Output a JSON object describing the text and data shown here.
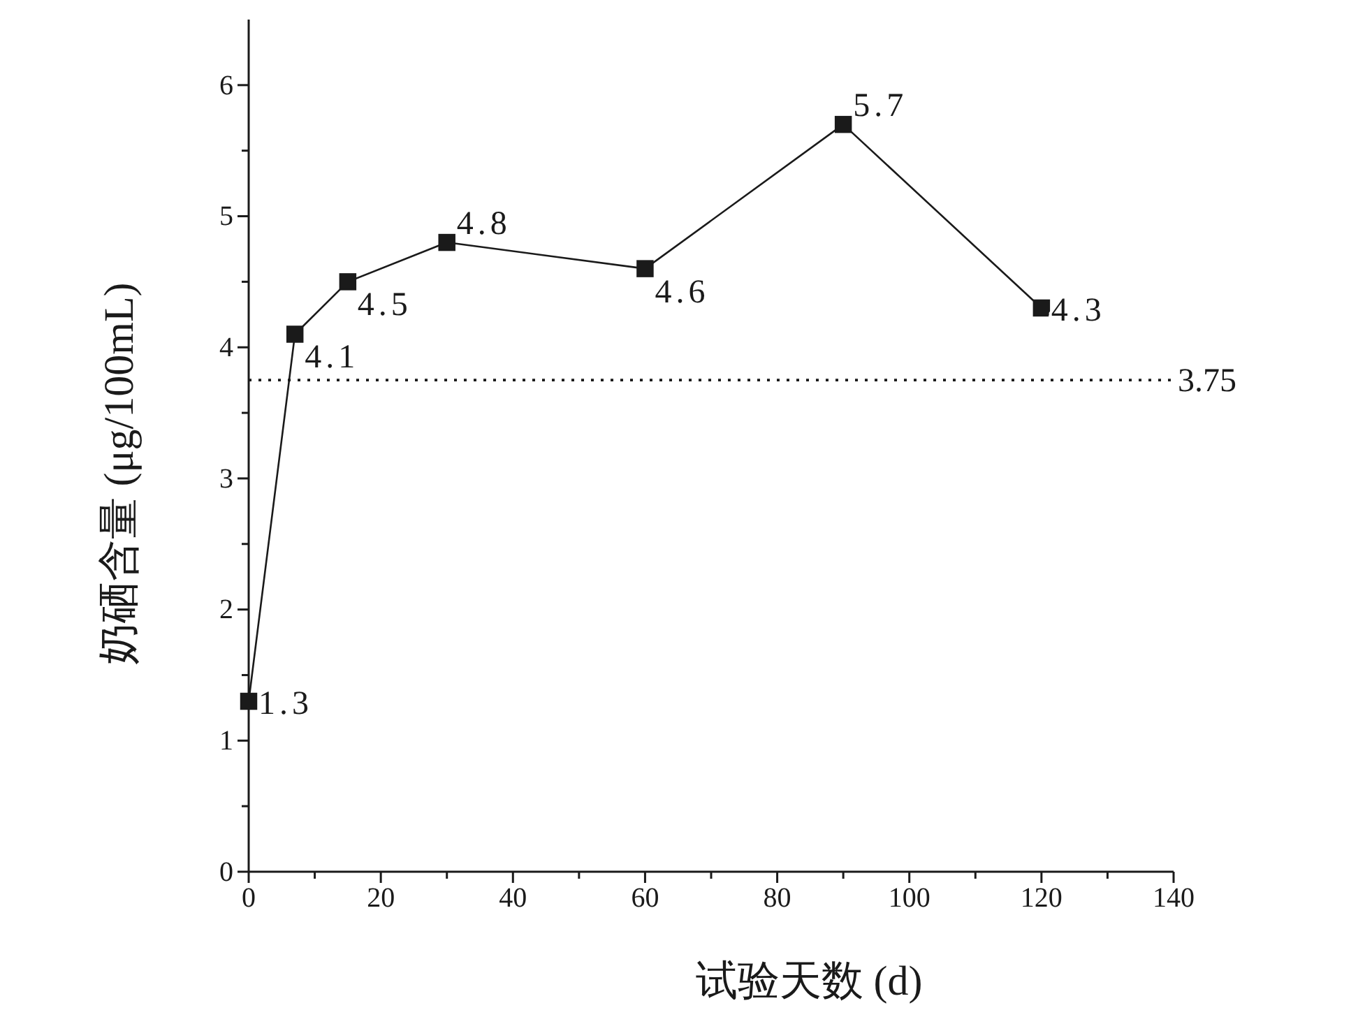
{
  "chart_data": {
    "type": "line",
    "xlabel": "试验天数 (d)",
    "ylabel": "奶硒含量 (μg/100mL)",
    "x": [
      0,
      7,
      15,
      30,
      60,
      90,
      120
    ],
    "series": [
      {
        "color": "#1a1a1a",
        "values": [
          1.3,
          4.1,
          4.5,
          4.8,
          4.6,
          5.7,
          4.3
        ]
      }
    ],
    "xlim": [
      0,
      140
    ],
    "xticks": [
      0,
      20,
      40,
      60,
      80,
      100,
      120,
      140
    ],
    "ylim": [
      0,
      6.5
    ],
    "yticks": [
      0,
      1,
      2,
      3,
      4,
      5,
      6
    ],
    "ref_lines": [
      {
        "axis": "y",
        "value": 3.75,
        "label": "3.75",
        "line_style": "dotted",
        "color": "#1a1a1a"
      }
    ],
    "data_labels": true,
    "marker": "square",
    "line_style": "solid",
    "grid": false
  }
}
